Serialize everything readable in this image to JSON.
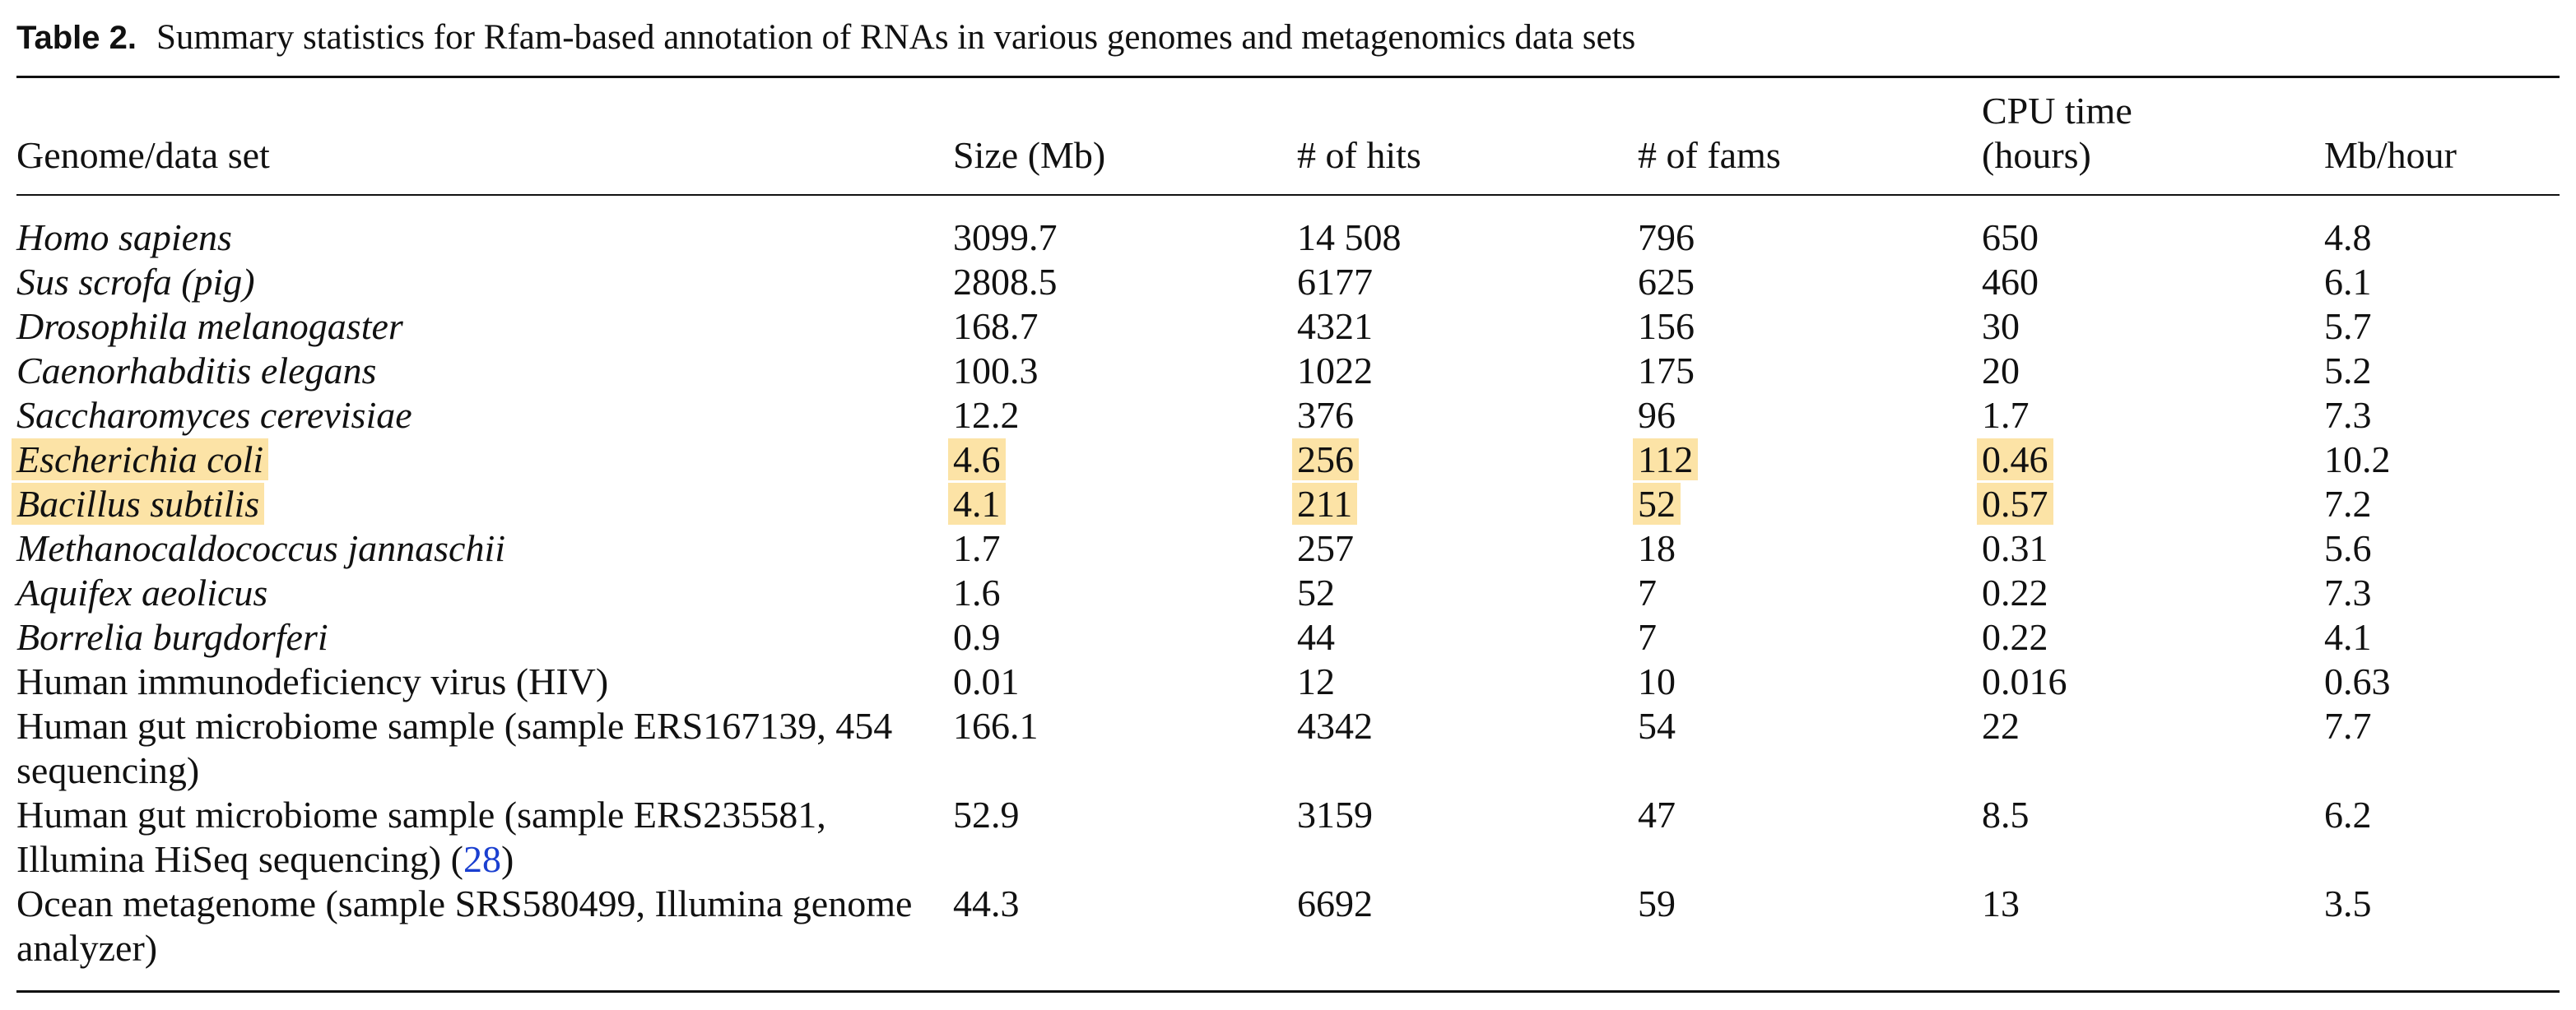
{
  "caption": {
    "label": "Table 2.",
    "text": "Summary statistics for Rfam-based annotation of RNAs in various genomes and metagenomics data sets"
  },
  "columns": [
    {
      "lines": [
        "Genome/data set"
      ]
    },
    {
      "lines": [
        "Size (Mb)"
      ]
    },
    {
      "lines": [
        "# of hits"
      ]
    },
    {
      "lines": [
        "# of fams"
      ]
    },
    {
      "lines": [
        "CPU time",
        "(hours)"
      ]
    },
    {
      "lines": [
        "Mb/hour"
      ]
    }
  ],
  "rows": [
    {
      "name": "Homo sapiens",
      "italic": true,
      "size": "3099.7",
      "hits": "14 508",
      "fams": "796",
      "cpu": "650",
      "rate": "4.8"
    },
    {
      "name": "Sus scrofa (pig)",
      "italic": true,
      "size": "2808.5",
      "hits": "6177",
      "fams": "625",
      "cpu": "460",
      "rate": "6.1"
    },
    {
      "name": "Drosophila melanogaster",
      "italic": true,
      "size": "168.7",
      "hits": "4321",
      "fams": "156",
      "cpu": "30",
      "rate": "5.7"
    },
    {
      "name": "Caenorhabditis elegans",
      "italic": true,
      "size": "100.3",
      "hits": "1022",
      "fams": "175",
      "cpu": "20",
      "rate": "5.2"
    },
    {
      "name": "Saccharomyces cerevisiae",
      "italic": true,
      "size": "12.2",
      "hits": "376",
      "fams": "96",
      "cpu": "1.7",
      "rate": "7.3"
    },
    {
      "name": "Escherichia coli",
      "italic": true,
      "highlight": true,
      "size": "4.6",
      "hits": "256",
      "fams": "112",
      "cpu": "0.46",
      "rate": "10.2"
    },
    {
      "name": "Bacillus subtilis",
      "italic": true,
      "highlight": true,
      "size": "4.1",
      "hits": "211",
      "fams": "52",
      "cpu": "0.57",
      "rate": "7.2"
    },
    {
      "name": "Methanocaldococcus jannaschii",
      "italic": true,
      "size": "1.7",
      "hits": "257",
      "fams": "18",
      "cpu": "0.31",
      "rate": "5.6"
    },
    {
      "name": "Aquifex aeolicus",
      "italic": true,
      "size": "1.6",
      "hits": "52",
      "fams": "7",
      "cpu": "0.22",
      "rate": "7.3"
    },
    {
      "name": "Borrelia burgdorferi",
      "italic": true,
      "size": "0.9",
      "hits": "44",
      "fams": "7",
      "cpu": "0.22",
      "rate": "4.1"
    },
    {
      "name": "Human immunodeficiency virus (HIV)",
      "size": "0.01",
      "hits": "12",
      "fams": "10",
      "cpu": "0.016",
      "rate": "0.63"
    },
    {
      "name": "Human gut microbiome sample (sample ERS167139, 454 sequencing)",
      "size": "166.1",
      "hits": "4342",
      "fams": "54",
      "cpu": "22",
      "rate": "7.7"
    },
    {
      "name": "Human gut microbiome sample (sample ERS235581, Illumina HiSeq sequencing) (",
      "ref": "28",
      "name_tail": ")",
      "size": "52.9",
      "hits": "3159",
      "fams": "47",
      "cpu": "8.5",
      "rate": "6.2"
    },
    {
      "name": "Ocean metagenome (sample SRS580499, Illumina genome analyzer)",
      "size": "44.3",
      "hits": "6692",
      "fams": "59",
      "cpu": "13",
      "rate": "3.5"
    }
  ]
}
